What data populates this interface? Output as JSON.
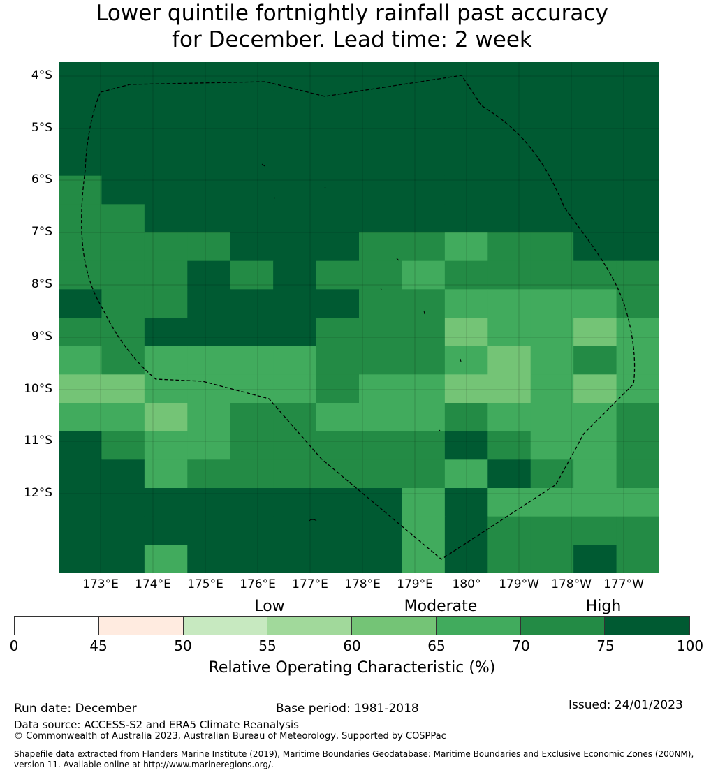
{
  "title": {
    "line1": "Lower quintile fortnightly rainfall past accuracy",
    "line2": "for December. Lead time: 2 week"
  },
  "map": {
    "lat_labels": [
      "4°S",
      "5°S",
      "6°S",
      "7°S",
      "8°S",
      "9°S",
      "10°S",
      "11°S",
      "12°S"
    ],
    "lon_labels": [
      "173°E",
      "174°E",
      "175°E",
      "176°E",
      "177°E",
      "178°E",
      "179°E",
      "180°",
      "179°W",
      "178°W",
      "177°W"
    ],
    "grid_colors": [
      "#005A32",
      "#238B45",
      "#41AB5D",
      "#74C476"
    ],
    "grid_rows": [
      "GGGGGGGGGGGGGG",
      "GGGGGGGGGGGGGG",
      "GGGGGGGGGGGGGG",
      "GGGGGGGGGGGGGG",
      "DGGGGGGGGGGGGG",
      "DDGGGGGGGGGGGG",
      "DDDDGGGDDMDDGGGG",
      "DDDGDGDDMDDDDDD",
      "GDDGGGGDDMMMMDDD",
      "DDGGGGDDDLMMLMDD",
      "MDMMMMDDDMLMDMMD",
      "LLMMMMDMMLLMLMDM",
      "MMLMDDMMMDMMMDDM",
      "GDMMDDDDDGDMMDMML",
      "GGMDDDDDDMGDMDDMM",
      "GGGGGGGGMGMMMMMM",
      "GGGGGGGGMGDDDDDM",
      "GGMGGGGGMGDDGDGM"
    ],
    "legend_colors": {
      "white": "#FFFFFF",
      "salmon": "#FFEBE0",
      "very_light_green": "#C7E9C0",
      "light_green": "#A1D99B",
      "medium_light_green": "#74C476",
      "medium_green": "#41AB5D",
      "green": "#238B45",
      "dark_green": "#005A32"
    }
  },
  "legend": {
    "categories": [
      "Low",
      "Moderate",
      "High"
    ],
    "ticks": [
      "0",
      "45",
      "50",
      "55",
      "60",
      "65",
      "70",
      "75",
      "100"
    ],
    "segments": [
      "#FFFFFF",
      "#FFEBE0",
      "#C7E9C0",
      "#A1D99B",
      "#74C476",
      "#41AB5D",
      "#238B45",
      "#005A32"
    ],
    "title": "Relative Operating Characteristic (%)"
  },
  "footer": {
    "run_date": "Run date: December",
    "base_period": "Base period: 1981-2018",
    "issued": "Issued: 24/01/2023",
    "data_source": "Data source: ACCESS-S2 and ERA5 Climate Reanalysis",
    "copyright": "© Commonwealth of Australia 2023, Australian Bureau of Meteorology, Supported by COSPPac",
    "shapefile_line1": "Shapefile data extracted from Flanders Marine Institute (2019), Maritime Boundaries Geodatabase: Maritime Boundaries and Exclusive Economic Zones (200NM),",
    "shapefile_line2": "version 11. Available online at http://www.marineregions.org/."
  }
}
